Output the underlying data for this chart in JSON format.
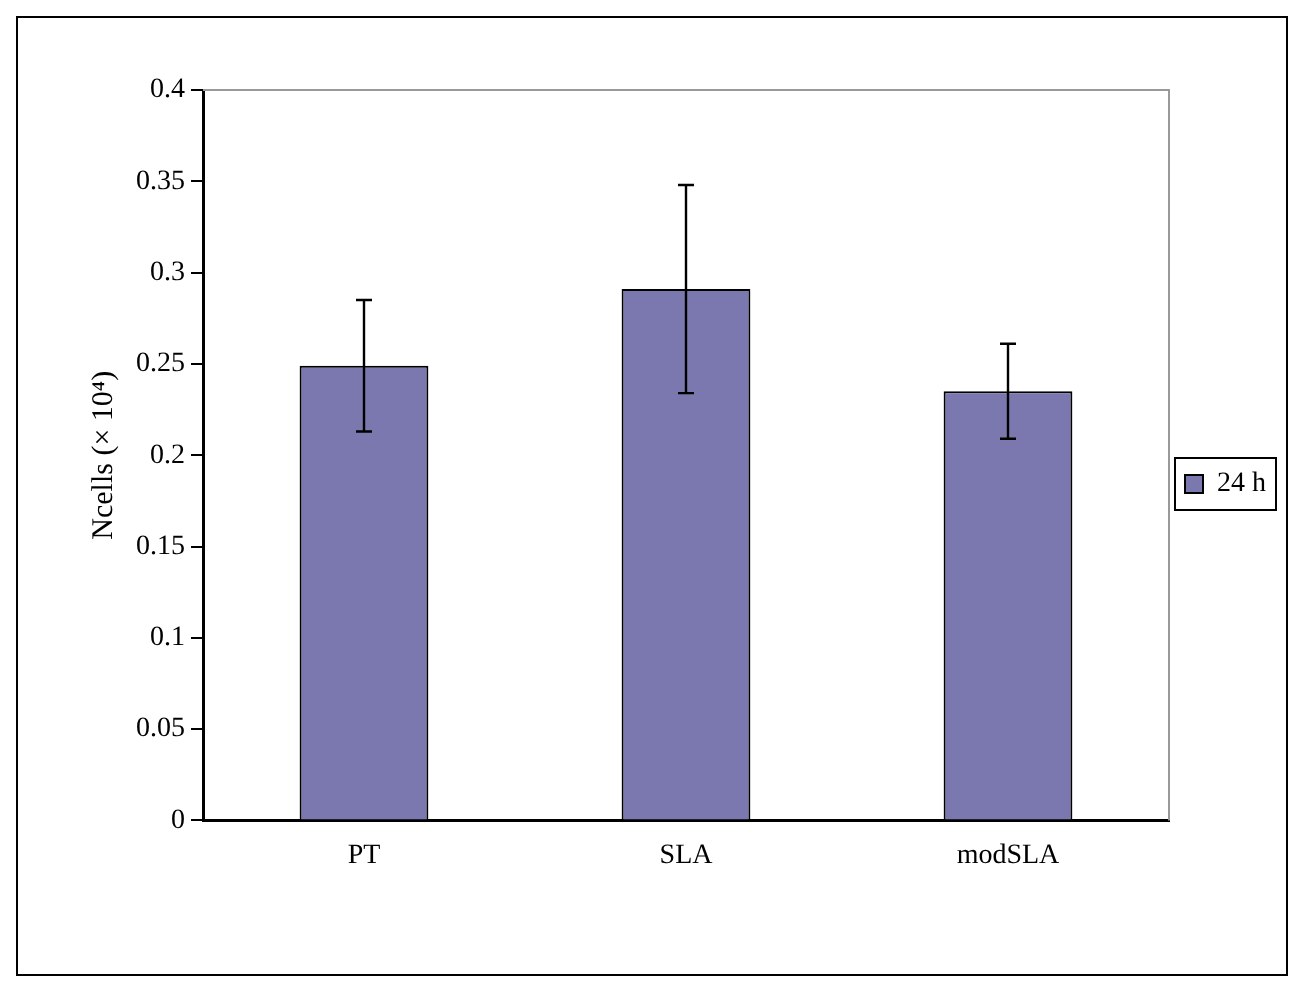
{
  "chart_data": {
    "type": "bar",
    "ylabel": "Ncells (× 10⁴)",
    "categories": [
      "PT",
      "SLA",
      "modSLA"
    ],
    "series": [
      {
        "name": "24 h",
        "color": "#7b78b0",
        "values": [
          0.249,
          0.291,
          0.235
        ],
        "errors": [
          0.036,
          0.057,
          0.026
        ]
      }
    ],
    "ylim": [
      0,
      0.4
    ],
    "yticks": [
      0,
      0.05,
      0.1,
      0.15,
      0.2,
      0.25,
      0.3,
      0.35,
      0.4
    ],
    "grid": false,
    "legend": "right"
  }
}
